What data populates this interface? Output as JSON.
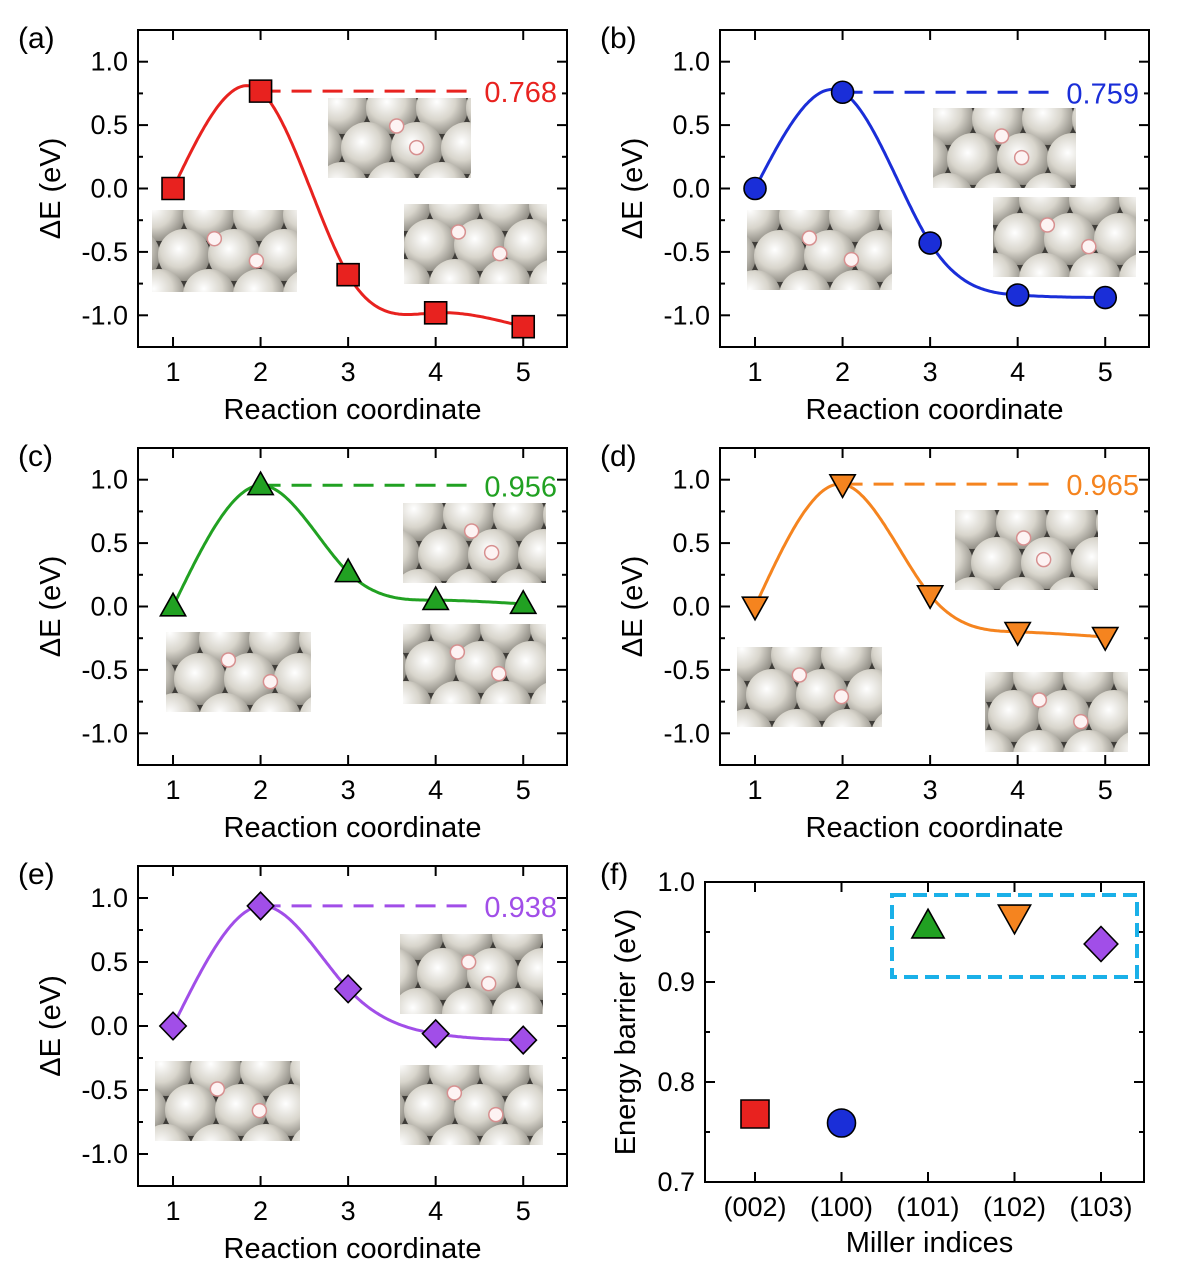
{
  "chart_data": [
    {
      "panel": "(a)",
      "type": "line",
      "x": [
        1,
        2,
        3,
        4,
        5
      ],
      "values": [
        0.0,
        0.768,
        -0.68,
        -0.98,
        -1.09
      ],
      "barrier_label": "0.768",
      "color": "#e8221f",
      "marker": "square",
      "xlabel": "Reaction coordinate",
      "ylabel": "ΔE (eV)",
      "xlim": [
        0.6,
        5.5
      ],
      "ylim": [
        -1.25,
        1.25
      ],
      "xticks": [
        "1",
        "2",
        "3",
        "4",
        "5"
      ],
      "yticks": [
        "1.0",
        "0.5",
        "0.0",
        "-0.5",
        "-1.0"
      ],
      "insets": 3
    },
    {
      "panel": "(b)",
      "type": "line",
      "x": [
        1,
        2,
        3,
        4,
        5
      ],
      "values": [
        0.0,
        0.759,
        -0.43,
        -0.84,
        -0.86
      ],
      "barrier_label": "0.759",
      "color": "#1a2ed8",
      "marker": "circle",
      "xlabel": "Reaction coordinate",
      "ylabel": "ΔE (eV)",
      "xlim": [
        0.6,
        5.5
      ],
      "ylim": [
        -1.25,
        1.25
      ],
      "xticks": [
        "1",
        "2",
        "3",
        "4",
        "5"
      ],
      "yticks": [
        "1.0",
        "0.5",
        "0.0",
        "-0.5",
        "-1.0"
      ],
      "insets": 3
    },
    {
      "panel": "(c)",
      "type": "line",
      "x": [
        1,
        2,
        3,
        4,
        5
      ],
      "values": [
        0.0,
        0.956,
        0.27,
        0.05,
        0.02
      ],
      "barrier_label": "0.956",
      "color": "#21a122",
      "marker": "triangle-up",
      "xlabel": "Reaction coordinate",
      "ylabel": "ΔE (eV)",
      "xlim": [
        0.6,
        5.5
      ],
      "ylim": [
        -1.25,
        1.25
      ],
      "xticks": [
        "1",
        "2",
        "3",
        "4",
        "5"
      ],
      "yticks": [
        "1.0",
        "0.5",
        "0.0",
        "-0.5",
        "-1.0"
      ],
      "insets": 3
    },
    {
      "panel": "(d)",
      "type": "line",
      "x": [
        1,
        2,
        3,
        4,
        5
      ],
      "values": [
        0.0,
        0.965,
        0.09,
        -0.2,
        -0.24
      ],
      "barrier_label": "0.965",
      "color": "#f5841f",
      "marker": "triangle-down",
      "xlabel": "Reaction coordinate",
      "ylabel": "ΔE (eV)",
      "xlim": [
        0.6,
        5.5
      ],
      "ylim": [
        -1.25,
        1.25
      ],
      "xticks": [
        "1",
        "2",
        "3",
        "4",
        "5"
      ],
      "yticks": [
        "1.0",
        "0.5",
        "0.0",
        "-0.5",
        "-1.0"
      ],
      "insets": 3
    },
    {
      "panel": "(e)",
      "type": "line",
      "x": [
        1,
        2,
        3,
        4,
        5
      ],
      "values": [
        0.0,
        0.938,
        0.29,
        -0.06,
        -0.11
      ],
      "barrier_label": "0.938",
      "color": "#a14ee8",
      "marker": "diamond",
      "xlabel": "Reaction coordinate",
      "ylabel": "ΔE (eV)",
      "xlim": [
        0.6,
        5.5
      ],
      "ylim": [
        -1.25,
        1.25
      ],
      "xticks": [
        "1",
        "2",
        "3",
        "4",
        "5"
      ],
      "yticks": [
        "1.0",
        "0.5",
        "0.0",
        "-0.5",
        "-1.0"
      ],
      "insets": 3
    },
    {
      "panel": "(f)",
      "type": "scatter",
      "categories": [
        "(002)",
        "(100)",
        "(101)",
        "(102)",
        "(103)"
      ],
      "values": [
        0.768,
        0.759,
        0.956,
        0.965,
        0.938
      ],
      "markers": [
        "square",
        "circle",
        "triangle-up",
        "triangle-down",
        "diamond"
      ],
      "colors": [
        "#e8221f",
        "#1a2ed8",
        "#21a122",
        "#f5841f",
        "#a14ee8"
      ],
      "xlabel": "Miller indices",
      "ylabel": "Energy barrier (eV)",
      "ylim": [
        0.7,
        1.0
      ],
      "yticks": [
        "1.0",
        "0.9",
        "0.8",
        "0.7"
      ],
      "highlight": {
        "categories": [
          "(101)",
          "(102)",
          "(103)"
        ],
        "color": "#1ab0e8",
        "style": "dashed"
      }
    }
  ]
}
